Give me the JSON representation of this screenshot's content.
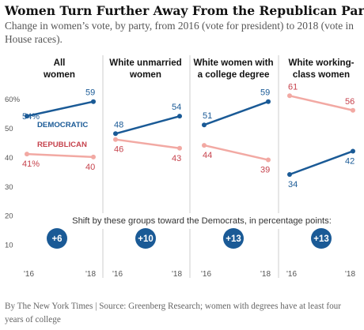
{
  "header": {
    "title": "Women Turn Further Away From the Republican Party",
    "subtitle": "Change in women’s vote, by party, from 2016 (vote for president) to 2018 (vote in House races)."
  },
  "footer": {
    "source": "By The New York Times | Source: Greenberg Research; women with degrees have at least four years of college"
  },
  "colors": {
    "democratic": "#1a5a96",
    "republican_dark": "#c6424c",
    "republican_light": "#f2a9a3",
    "badge": "#1a5a96",
    "rule": "#cccccc"
  },
  "chart_data": {
    "type": "line",
    "y_tick_labels": [
      "60%",
      "50",
      "40",
      "30",
      "20",
      "10"
    ],
    "y_ticks": [
      60,
      50,
      40,
      30,
      20,
      10
    ],
    "ylim": [
      8,
      63
    ],
    "x_labels": [
      "'16",
      "'18"
    ],
    "shift_label": "Shift by these groups toward the Democrats, in percentage points:",
    "series_labels": {
      "democratic": "DEMOCRATIC",
      "republican": "REPUBLICAN"
    },
    "panels": [
      {
        "title": "All\nwomen",
        "democratic": [
          54,
          59
        ],
        "republican": [
          41,
          40
        ],
        "dem_labels": [
          "54%",
          "59"
        ],
        "rep_labels": [
          "41%",
          "40"
        ],
        "shift": "+6"
      },
      {
        "title": "White unmarried\nwomen",
        "democratic": [
          48,
          54
        ],
        "republican": [
          46,
          43
        ],
        "dem_labels": [
          "48",
          "54"
        ],
        "rep_labels": [
          "46",
          "43"
        ],
        "shift": "+10"
      },
      {
        "title": "White women with\na college degree",
        "democratic": [
          51,
          59
        ],
        "republican": [
          44,
          39
        ],
        "dem_labels": [
          "51",
          "59"
        ],
        "rep_labels": [
          "44",
          "39"
        ],
        "shift": "+13"
      },
      {
        "title": "White working-\nclass women",
        "democratic": [
          34,
          42
        ],
        "republican": [
          61,
          56
        ],
        "dem_labels": [
          "34",
          "42"
        ],
        "rep_labels": [
          "61",
          "56"
        ],
        "shift": "+13"
      }
    ]
  }
}
